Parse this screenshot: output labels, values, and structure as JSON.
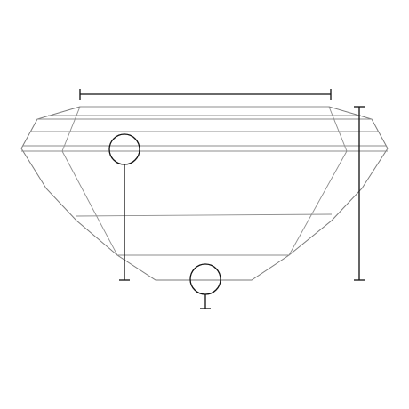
{
  "diagram": {
    "subject": "emerald-cut-gemstone-side-profile",
    "colors": {
      "background": "#ffffff",
      "outline": "#7a7a7a",
      "facet_lines": "#8c8c8c",
      "dimension_lines": "#111111"
    },
    "dimension_lines": [
      {
        "id": "table-width",
        "orientation": "horizontal"
      },
      {
        "id": "total-depth",
        "orientation": "vertical"
      }
    ],
    "callout_markers": [
      {
        "id": "crown-marker"
      },
      {
        "id": "culet-marker"
      }
    ]
  }
}
